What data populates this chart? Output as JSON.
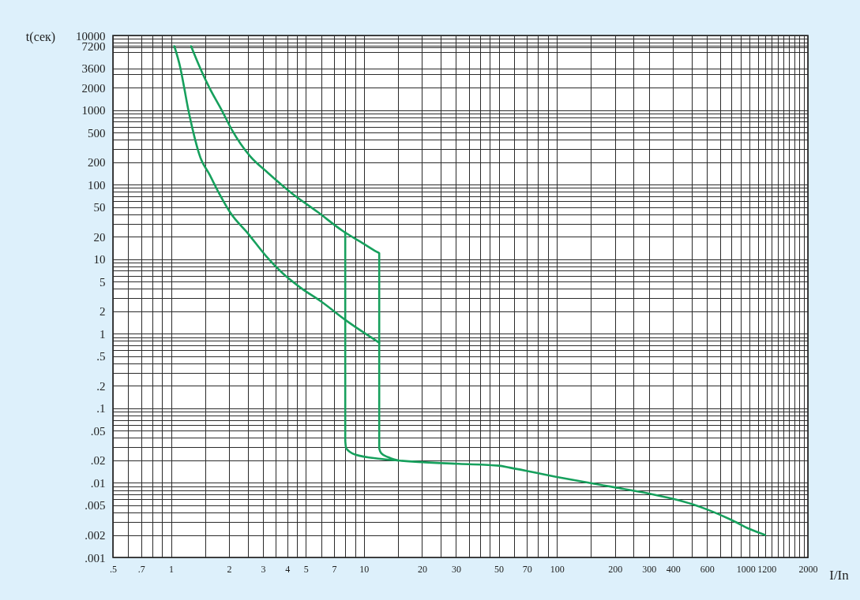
{
  "chart_data": {
    "type": "line",
    "xlabel": "I/In",
    "ylabel": "t(сек)",
    "log": "xy",
    "grid": true,
    "line_style": "solid",
    "xlim": [
      0.5,
      2000
    ],
    "ylim": [
      0.001,
      10000
    ],
    "xticks": [
      {
        "value": 0.5,
        "label": ".5"
      },
      {
        "value": 0.6,
        "label": null
      },
      {
        "value": 0.7,
        "label": ".7"
      },
      {
        "value": 0.8,
        "label": null
      },
      {
        "value": 0.9,
        "label": null
      },
      1,
      {
        "value": 1.5,
        "label": null
      },
      2,
      {
        "value": 2.5,
        "label": null
      },
      3,
      {
        "value": 3.5,
        "label": null
      },
      4,
      {
        "value": 4.5,
        "label": null
      },
      5,
      {
        "value": 6,
        "label": null
      },
      7,
      {
        "value": 8,
        "label": null
      },
      {
        "value": 9,
        "label": null
      },
      10,
      {
        "value": 15,
        "label": null
      },
      20,
      {
        "value": 25,
        "label": null
      },
      30,
      {
        "value": 35,
        "label": null
      },
      {
        "value": 40,
        "label": null
      },
      {
        "value": 45,
        "label": null
      },
      50,
      {
        "value": 60,
        "label": null
      },
      70,
      {
        "value": 80,
        "label": null
      },
      {
        "value": 90,
        "label": null
      },
      100,
      {
        "value": 150,
        "label": null
      },
      200,
      {
        "value": 250,
        "label": null
      },
      300,
      400,
      {
        "value": 500,
        "label": null
      },
      600,
      {
        "value": 700,
        "label": null
      },
      {
        "value": 800,
        "label": null
      },
      {
        "value": 900,
        "label": null
      },
      1000,
      {
        "value": 1100,
        "label": null
      },
      1200,
      {
        "value": 1300,
        "label": null
      },
      {
        "value": 1400,
        "label": null
      },
      {
        "value": 1500,
        "label": null
      },
      {
        "value": 1600,
        "label": null
      },
      {
        "value": 1700,
        "label": null
      },
      {
        "value": 1800,
        "label": null
      },
      {
        "value": 1900,
        "label": null
      },
      2000
    ],
    "yticks": [
      {
        "value": 0.001,
        "label": ".001"
      },
      {
        "value": 0.002,
        "label": ".002"
      },
      {
        "value": 0.003,
        "label": null
      },
      {
        "value": 0.004,
        "label": null
      },
      {
        "value": 0.005,
        "label": ".005"
      },
      {
        "value": 0.006,
        "label": null
      },
      {
        "value": 0.007,
        "label": null
      },
      {
        "value": 0.008,
        "label": null
      },
      {
        "value": 0.009,
        "label": null
      },
      {
        "value": 0.01,
        "label": ".01"
      },
      {
        "value": 0.02,
        "label": ".02"
      },
      {
        "value": 0.03,
        "label": null
      },
      {
        "value": 0.04,
        "label": null
      },
      {
        "value": 0.05,
        "label": ".05"
      },
      {
        "value": 0.06,
        "label": null
      },
      {
        "value": 0.07,
        "label": null
      },
      {
        "value": 0.08,
        "label": null
      },
      {
        "value": 0.09,
        "label": null
      },
      {
        "value": 0.1,
        "label": ".1"
      },
      {
        "value": 0.2,
        "label": ".2"
      },
      {
        "value": 0.3,
        "label": null
      },
      {
        "value": 0.4,
        "label": null
      },
      {
        "value": 0.5,
        "label": ".5"
      },
      {
        "value": 0.6,
        "label": null
      },
      {
        "value": 0.7,
        "label": null
      },
      {
        "value": 0.8,
        "label": null
      },
      {
        "value": 0.9,
        "label": null
      },
      1,
      2,
      {
        "value": 3,
        "label": null
      },
      {
        "value": 4,
        "label": null
      },
      5,
      {
        "value": 6,
        "label": null
      },
      {
        "value": 7,
        "label": null
      },
      {
        "value": 8,
        "label": null
      },
      {
        "value": 9,
        "label": null
      },
      10,
      20,
      {
        "value": 30,
        "label": null
      },
      {
        "value": 40,
        "label": null
      },
      50,
      {
        "value": 60,
        "label": null
      },
      {
        "value": 70,
        "label": null
      },
      {
        "value": 80,
        "label": null
      },
      {
        "value": 90,
        "label": null
      },
      100,
      200,
      {
        "value": 300,
        "label": null
      },
      {
        "value": 400,
        "label": null
      },
      500,
      {
        "value": 600,
        "label": null
      },
      {
        "value": 700,
        "label": null
      },
      {
        "value": 800,
        "label": null
      },
      {
        "value": 900,
        "label": null
      },
      1000,
      2000,
      {
        "value": 3000,
        "label": null
      },
      3600,
      {
        "value": 6000,
        "label": null
      },
      {
        "value": 7000,
        "label": null
      },
      7200,
      {
        "value": 8000,
        "label": null
      },
      {
        "value": 9000,
        "label": null
      },
      10000
    ],
    "series": [
      {
        "color": "#17a05d",
        "x": [
          1.04,
          1.12,
          1.17,
          1.23,
          1.29,
          1.42,
          1.58,
          1.75,
          2.03,
          2.51,
          3.11,
          3.76,
          4.66,
          6.01,
          8.1,
          12
        ],
        "values": [
          7200,
          3600,
          2000,
          1000,
          570,
          230,
          138,
          82,
          42,
          22,
          11,
          6.6,
          4.2,
          2.7,
          1.5,
          0.76
        ]
      },
      {
        "color": "#17a05d",
        "x": [
          1.27,
          1.42,
          1.58,
          1.83,
          2.07,
          2.57,
          3.18,
          4.27,
          5.75,
          7.75,
          10,
          11.6,
          12,
          12,
          12.3,
          13.4,
          15,
          31,
          50,
          57,
          100,
          150,
          200,
          300,
          400,
          500,
          600,
          800,
          1000,
          1200
        ],
        "values": [
          7200,
          3600,
          2000,
          1000,
          540,
          240,
          144,
          75,
          43,
          24,
          16,
          12.6,
          12,
          0.029,
          0.025,
          0.022,
          0.02,
          0.018,
          0.017,
          0.016,
          0.012,
          0.0099,
          0.0087,
          0.0072,
          0.0061,
          0.0052,
          0.0044,
          0.0032,
          0.0024,
          0.002
        ]
      },
      {
        "color": "#17a05d",
        "x": [
          8,
          8,
          8.1,
          9,
          12.2,
          15
        ],
        "values": [
          23,
          0.037,
          0.029,
          0.024,
          0.021,
          0.02
        ]
      }
    ]
  }
}
